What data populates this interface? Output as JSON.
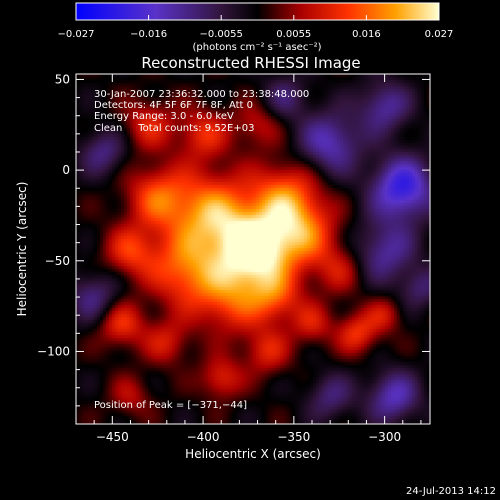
{
  "colorbar": {
    "ticks": [
      "−0.027",
      "−0.016",
      "−0.0055",
      "0.0055",
      "0.016",
      "0.027"
    ],
    "range": [
      -0.027,
      0.027
    ],
    "units": "(photons cm⁻² s⁻¹ asec⁻²)"
  },
  "chart_data": {
    "type": "heatmap",
    "title": "Reconstructed RHESSI Image",
    "xlabel": "Heliocentric X (arcsec)",
    "ylabel": "Heliocentric Y (arcsec)",
    "xlim": [
      -470,
      -275
    ],
    "ylim": [
      -140,
      53
    ],
    "xticks": [
      -450,
      -400,
      -350,
      -300
    ],
    "yticks": [
      50,
      0,
      -50,
      -100
    ],
    "xtick_labels": [
      "−450",
      "−400",
      "−350",
      "−300"
    ],
    "ytick_labels": [
      "50",
      "0",
      "−50",
      "−100"
    ],
    "colormap": "blue-purple-black-red-orange-yellow-white",
    "peak_position": [
      -371,
      -44
    ],
    "blobs": [
      {
        "x": -371,
        "y": -44,
        "amp": 0.027,
        "w": 14
      },
      {
        "x": -395,
        "y": -25,
        "amp": 0.02,
        "w": 16
      },
      {
        "x": -355,
        "y": -15,
        "amp": 0.016,
        "w": 13
      },
      {
        "x": -345,
        "y": -35,
        "amp": 0.015,
        "w": 13
      },
      {
        "x": -410,
        "y": -55,
        "amp": 0.015,
        "w": 14
      },
      {
        "x": -385,
        "y": -70,
        "amp": 0.014,
        "w": 14
      },
      {
        "x": -360,
        "y": -70,
        "amp": 0.012,
        "w": 10
      },
      {
        "x": -425,
        "y": -15,
        "amp": 0.014,
        "w": 12
      },
      {
        "x": -440,
        "y": -45,
        "amp": 0.012,
        "w": 10
      },
      {
        "x": -445,
        "y": -85,
        "amp": 0.012,
        "w": 9
      },
      {
        "x": -420,
        "y": -95,
        "amp": 0.009,
        "w": 9
      },
      {
        "x": -390,
        "y": -115,
        "amp": 0.011,
        "w": 8
      },
      {
        "x": -365,
        "y": -100,
        "amp": 0.01,
        "w": 9
      },
      {
        "x": -340,
        "y": -85,
        "amp": 0.009,
        "w": 8
      },
      {
        "x": -315,
        "y": -90,
        "amp": 0.012,
        "w": 8
      },
      {
        "x": -300,
        "y": -80,
        "amp": 0.008,
        "w": 7
      },
      {
        "x": -325,
        "y": -55,
        "amp": 0.008,
        "w": 10
      },
      {
        "x": -430,
        "y": 25,
        "amp": 0.01,
        "w": 10
      },
      {
        "x": -400,
        "y": 20,
        "amp": 0.011,
        "w": 10
      },
      {
        "x": -370,
        "y": 25,
        "amp": 0.008,
        "w": 9
      },
      {
        "x": -440,
        "y": -125,
        "amp": 0.007,
        "w": 8
      },
      {
        "x": -300,
        "y": -45,
        "amp": -0.012,
        "w": 12
      },
      {
        "x": -290,
        "y": -10,
        "amp": -0.02,
        "w": 12
      },
      {
        "x": -330,
        "y": 15,
        "amp": -0.014,
        "w": 12
      },
      {
        "x": -300,
        "y": 35,
        "amp": -0.012,
        "w": 10
      },
      {
        "x": -460,
        "y": -70,
        "amp": -0.01,
        "w": 10
      },
      {
        "x": -295,
        "y": -125,
        "amp": -0.014,
        "w": 10
      },
      {
        "x": -330,
        "y": -125,
        "amp": -0.009,
        "w": 9
      },
      {
        "x": -455,
        "y": 10,
        "amp": -0.01,
        "w": 9
      },
      {
        "x": -355,
        "y": 40,
        "amp": -0.008,
        "w": 9
      },
      {
        "x": -280,
        "y": -65,
        "amp": -0.008,
        "w": 8
      }
    ],
    "info_lines": [
      "30-Jan-2007 23:36:32.000 to 23:38:48.000",
      "Detectors: 4F 5F 6F 7F 8F, Att 0",
      "Energy Range: 3.0 - 6.0 keV",
      "Clean     Total counts: 9.52E+03"
    ],
    "peak_label": "Position of Peak = [−371,−44]",
    "footer_date": "24-Jul-2013 14:12"
  }
}
